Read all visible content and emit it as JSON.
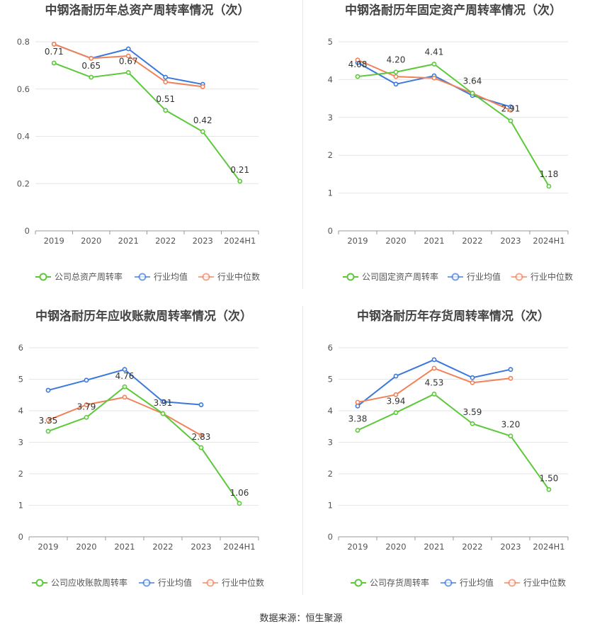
{
  "footer": {
    "source_text": "数据来源：恒生聚源"
  },
  "colors": {
    "company": "#5cc83a",
    "industry_avg": "#3b78dc",
    "industry_median": "#f0825a",
    "grid": "#e6e6e6",
    "axis": "#999999",
    "text": "#555555",
    "title": "#444444"
  },
  "chart_data": [
    {
      "type": "line",
      "title": "中钢洛耐历年总资产周转率情况（次）",
      "categories": [
        "2019",
        "2020",
        "2021",
        "2022",
        "2023",
        "2024H1"
      ],
      "ylim": [
        0,
        0.8
      ],
      "yticks": [
        0,
        0.2,
        0.4,
        0.6,
        0.8
      ],
      "ytick_labels": [
        "0",
        "0.2",
        "0.4",
        "0.6",
        "0.8"
      ],
      "grid": true,
      "legend_position": "bottom",
      "series": [
        {
          "name": "公司总资产周转率",
          "values": [
            0.71,
            0.65,
            0.67,
            0.51,
            0.42,
            0.21
          ],
          "labels": [
            "0.71",
            "0.65",
            "0.67",
            "0.51",
            "0.42",
            "0.21"
          ]
        },
        {
          "name": "行业均值",
          "values": [
            0.79,
            0.73,
            0.77,
            0.65,
            0.62,
            null
          ]
        },
        {
          "name": "行业中位数",
          "values": [
            0.79,
            0.73,
            0.74,
            0.63,
            0.61,
            null
          ]
        }
      ]
    },
    {
      "type": "line",
      "title": "中钢洛耐历年固定资产周转率情况（次）",
      "categories": [
        "2019",
        "2020",
        "2021",
        "2022",
        "2023",
        "2024H1"
      ],
      "ylim": [
        0,
        5
      ],
      "yticks": [
        0,
        1,
        2,
        3,
        4,
        5
      ],
      "ytick_labels": [
        "0",
        "1",
        "2",
        "3",
        "4",
        "5"
      ],
      "grid": true,
      "legend_position": "bottom",
      "series": [
        {
          "name": "公司固定资产周转率",
          "values": [
            4.08,
            4.2,
            4.41,
            3.64,
            2.91,
            1.18
          ],
          "labels": [
            "4.08",
            "4.20",
            "4.41",
            "3.64",
            "2.91",
            "1.18"
          ]
        },
        {
          "name": "行业均值",
          "values": [
            4.45,
            3.88,
            4.1,
            3.58,
            3.28,
            null
          ]
        },
        {
          "name": "行业中位数",
          "values": [
            4.52,
            4.08,
            4.04,
            3.64,
            3.19,
            null
          ]
        }
      ]
    },
    {
      "type": "line",
      "title": "中钢洛耐历年应收账款周转率情况（次）",
      "categories": [
        "2019",
        "2020",
        "2021",
        "2022",
        "2023",
        "2024H1"
      ],
      "ylim": [
        0,
        6
      ],
      "yticks": [
        0,
        1,
        2,
        3,
        4,
        5,
        6
      ],
      "ytick_labels": [
        "0",
        "1",
        "2",
        "3",
        "4",
        "5",
        "6"
      ],
      "grid": true,
      "legend_position": "bottom",
      "series": [
        {
          "name": "公司应收账款周转率",
          "values": [
            3.35,
            3.79,
            4.76,
            3.91,
            2.83,
            1.06
          ],
          "labels": [
            "3.35",
            "3.79",
            "4.76",
            "3.91",
            "2.83",
            "1.06"
          ]
        },
        {
          "name": "行业均值",
          "values": [
            4.65,
            4.97,
            5.31,
            4.29,
            4.19,
            null
          ]
        },
        {
          "name": "行业中位数",
          "values": [
            3.7,
            4.19,
            4.43,
            3.91,
            3.22,
            null
          ]
        }
      ]
    },
    {
      "type": "line",
      "title": "中钢洛耐历年存货周转率情况（次）",
      "categories": [
        "2019",
        "2020",
        "2021",
        "2022",
        "2023",
        "2024H1"
      ],
      "ylim": [
        0,
        6
      ],
      "yticks": [
        0,
        1,
        2,
        3,
        4,
        5,
        6
      ],
      "ytick_labels": [
        "0",
        "1",
        "2",
        "3",
        "4",
        "5",
        "6"
      ],
      "grid": true,
      "legend_position": "bottom",
      "series": [
        {
          "name": "公司存货周转率",
          "values": [
            3.38,
            3.94,
            4.53,
            3.59,
            3.2,
            1.5
          ],
          "labels": [
            "3.38",
            "3.94",
            "4.53",
            "3.59",
            "3.20",
            "1.50"
          ]
        },
        {
          "name": "行业均值",
          "values": [
            4.15,
            5.1,
            5.62,
            5.05,
            5.31,
            null
          ]
        },
        {
          "name": "行业中位数",
          "values": [
            4.27,
            4.51,
            5.35,
            4.89,
            5.03,
            null
          ]
        }
      ]
    }
  ]
}
